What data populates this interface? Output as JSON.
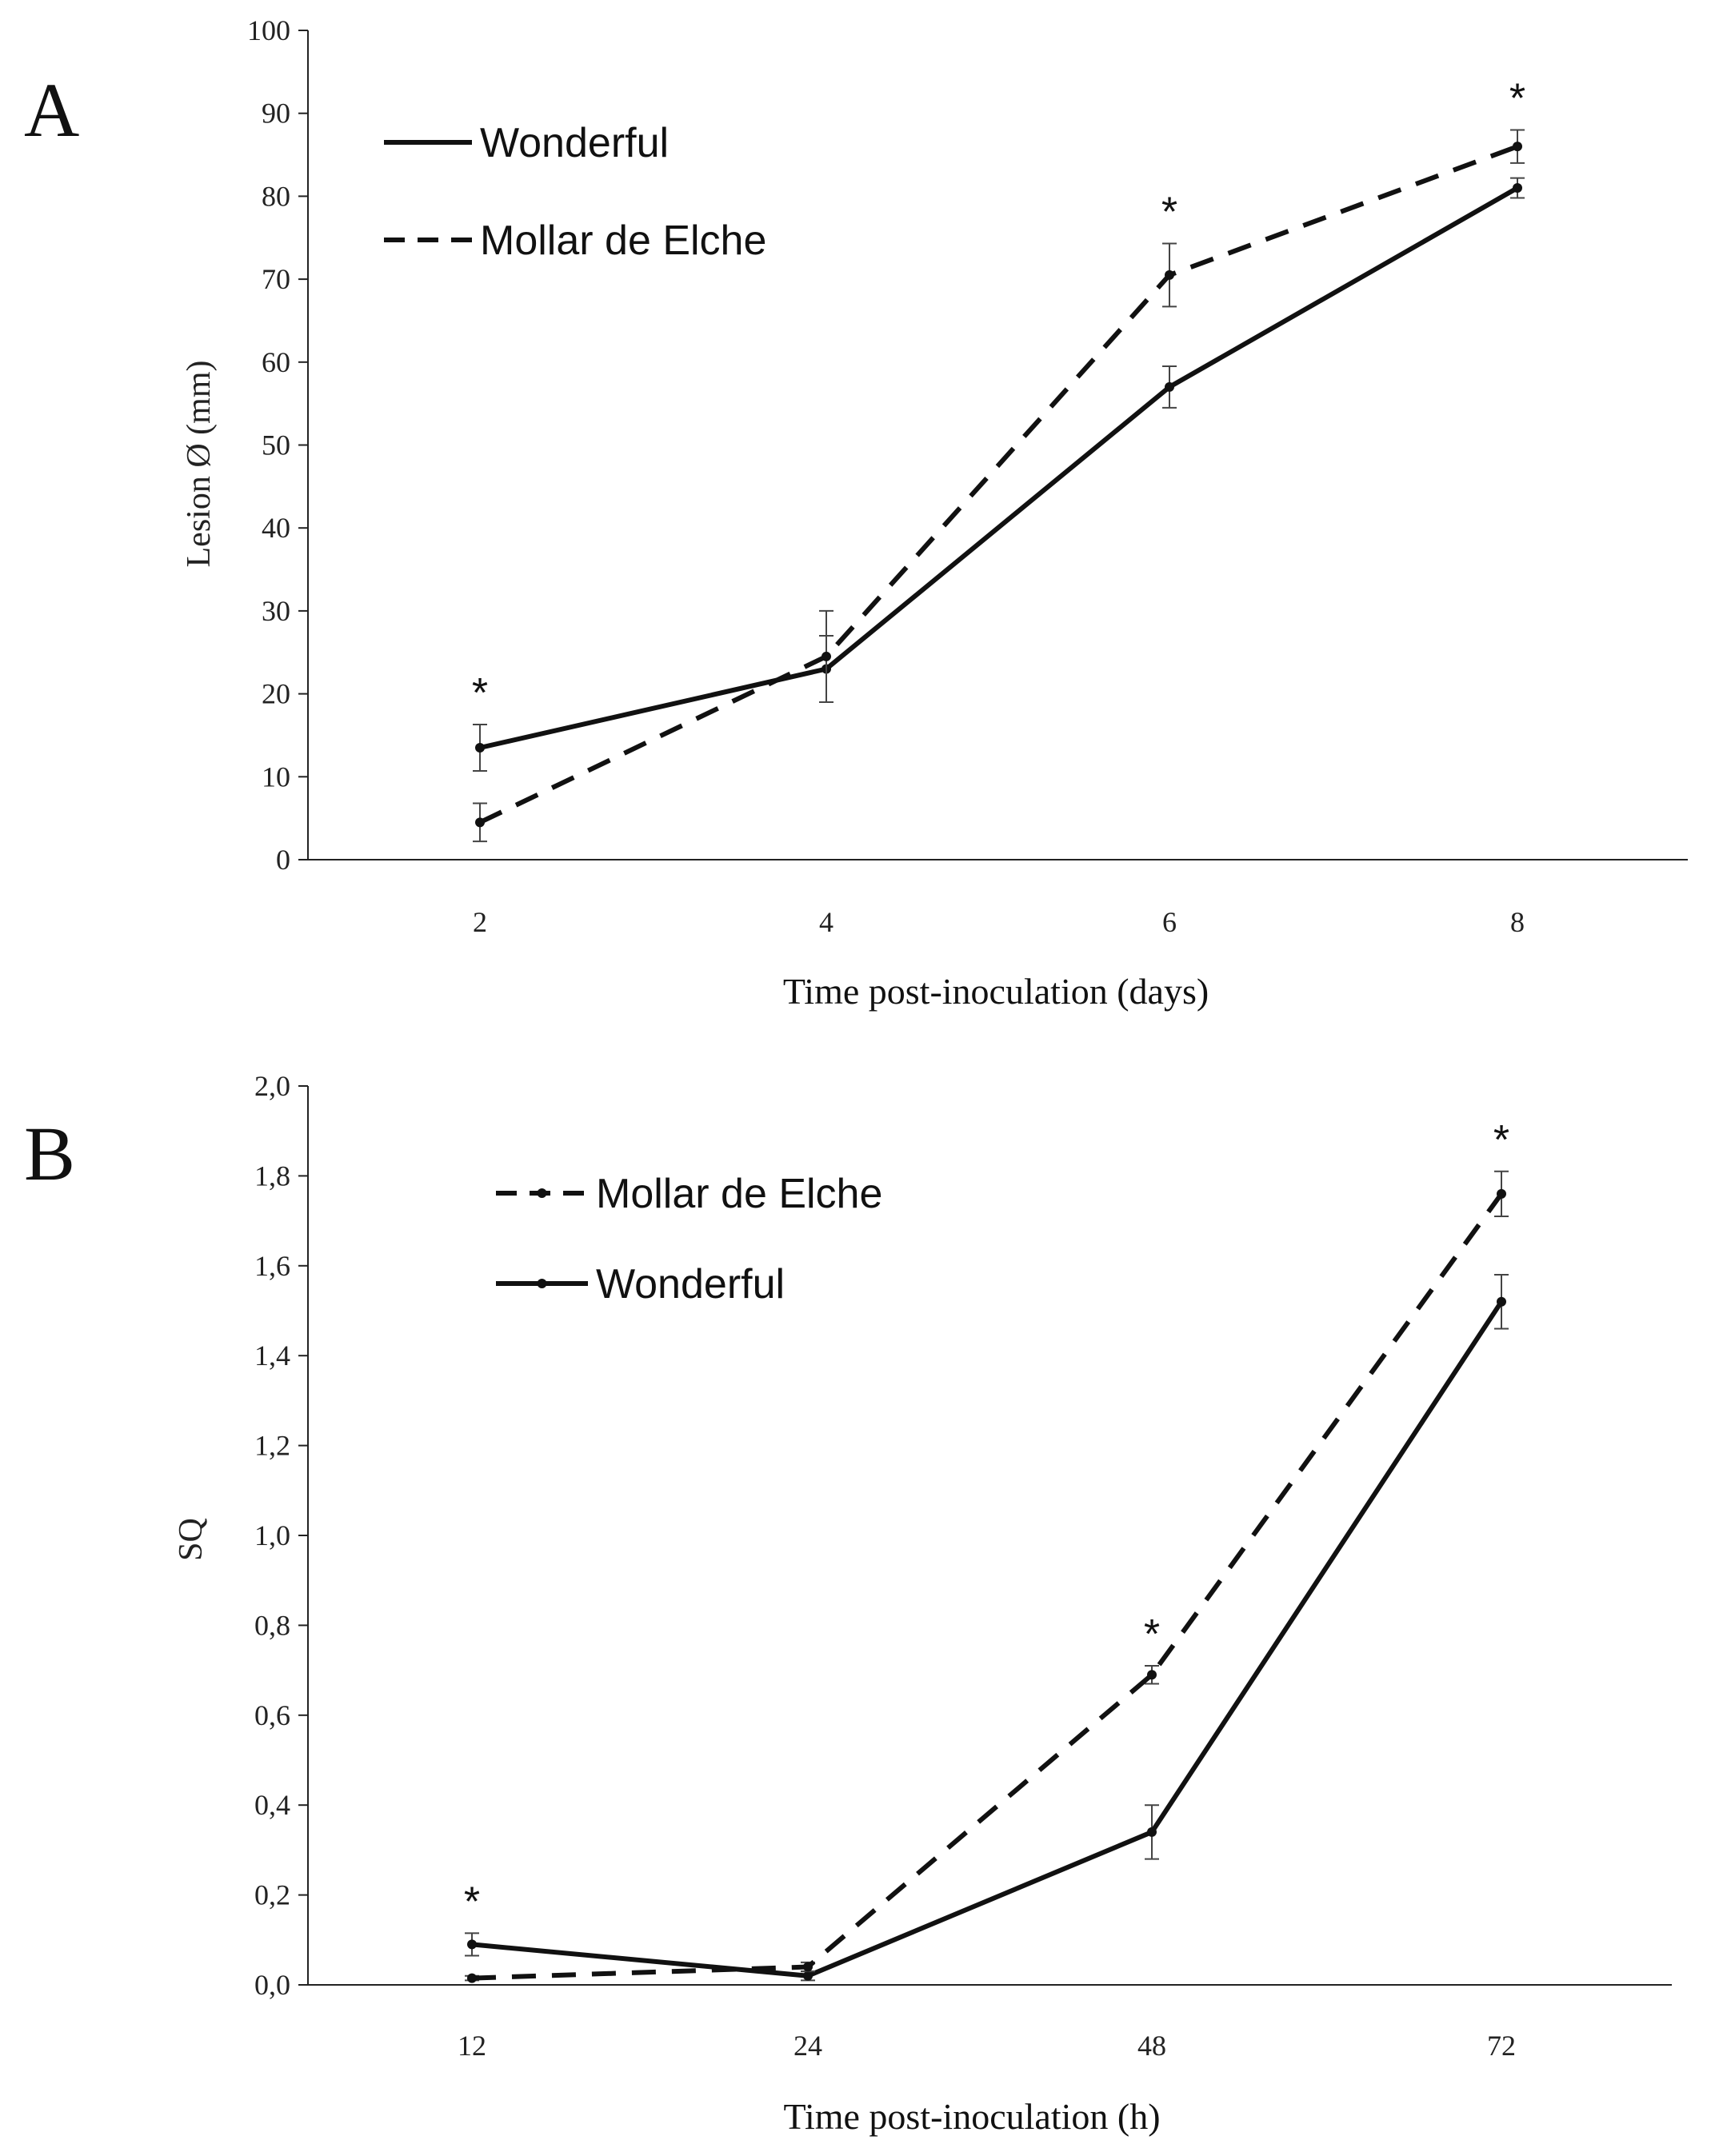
{
  "chart_data": [
    {
      "type": "line",
      "panel_label": "A",
      "xlabel": "Time post-inoculation (days)",
      "ylabel": "Lesion Ø (mm)",
      "categories": [
        "2",
        "4",
        "6",
        "8"
      ],
      "ylim": [
        0,
        100
      ],
      "yticks": [
        "0",
        "10",
        "20",
        "30",
        "40",
        "50",
        "60",
        "70",
        "80",
        "90",
        "100"
      ],
      "legend_order": [
        0,
        1
      ],
      "legend_markers": false,
      "series": [
        {
          "name": "Wonderful",
          "style": "solid",
          "values": [
            13.5,
            23,
            57,
            81
          ],
          "errors": [
            2.8,
            4.0,
            2.5,
            1.2
          ]
        },
        {
          "name": "Mollar de Elche",
          "style": "dashed",
          "values": [
            4.5,
            24.5,
            70.5,
            86
          ],
          "errors": [
            2.3,
            5.5,
            3.8,
            2.0
          ]
        }
      ],
      "significance": [
        {
          "category_index": 0,
          "label": "*"
        },
        {
          "category_index": 2,
          "label": "*"
        },
        {
          "category_index": 3,
          "label": "*"
        }
      ]
    },
    {
      "type": "line",
      "panel_label": "B",
      "xlabel": "Time post-inoculation (h)",
      "ylabel": "SQ",
      "categories": [
        "12",
        "24",
        "48",
        "72"
      ],
      "ylim": [
        0,
        2.0
      ],
      "yticks": [
        "0,0",
        "0,2",
        "0,4",
        "0,6",
        "0,8",
        "1,0",
        "1,2",
        "1,4",
        "1,6",
        "1,8",
        "2,0"
      ],
      "legend_order": [
        1,
        0
      ],
      "legend_markers": true,
      "series": [
        {
          "name": "Wonderful",
          "style": "solid",
          "values": [
            0.09,
            0.02,
            0.34,
            1.52
          ],
          "errors": [
            0.025,
            0.01,
            0.06,
            0.06
          ]
        },
        {
          "name": "Mollar de Elche",
          "style": "dashed",
          "values": [
            0.015,
            0.04,
            0.69,
            1.76
          ],
          "errors": [
            0.005,
            0.01,
            0.02,
            0.05
          ]
        }
      ],
      "significance": [
        {
          "category_index": 0,
          "label": "*"
        },
        {
          "category_index": 2,
          "label": "*"
        },
        {
          "category_index": 3,
          "label": "*"
        }
      ]
    }
  ]
}
